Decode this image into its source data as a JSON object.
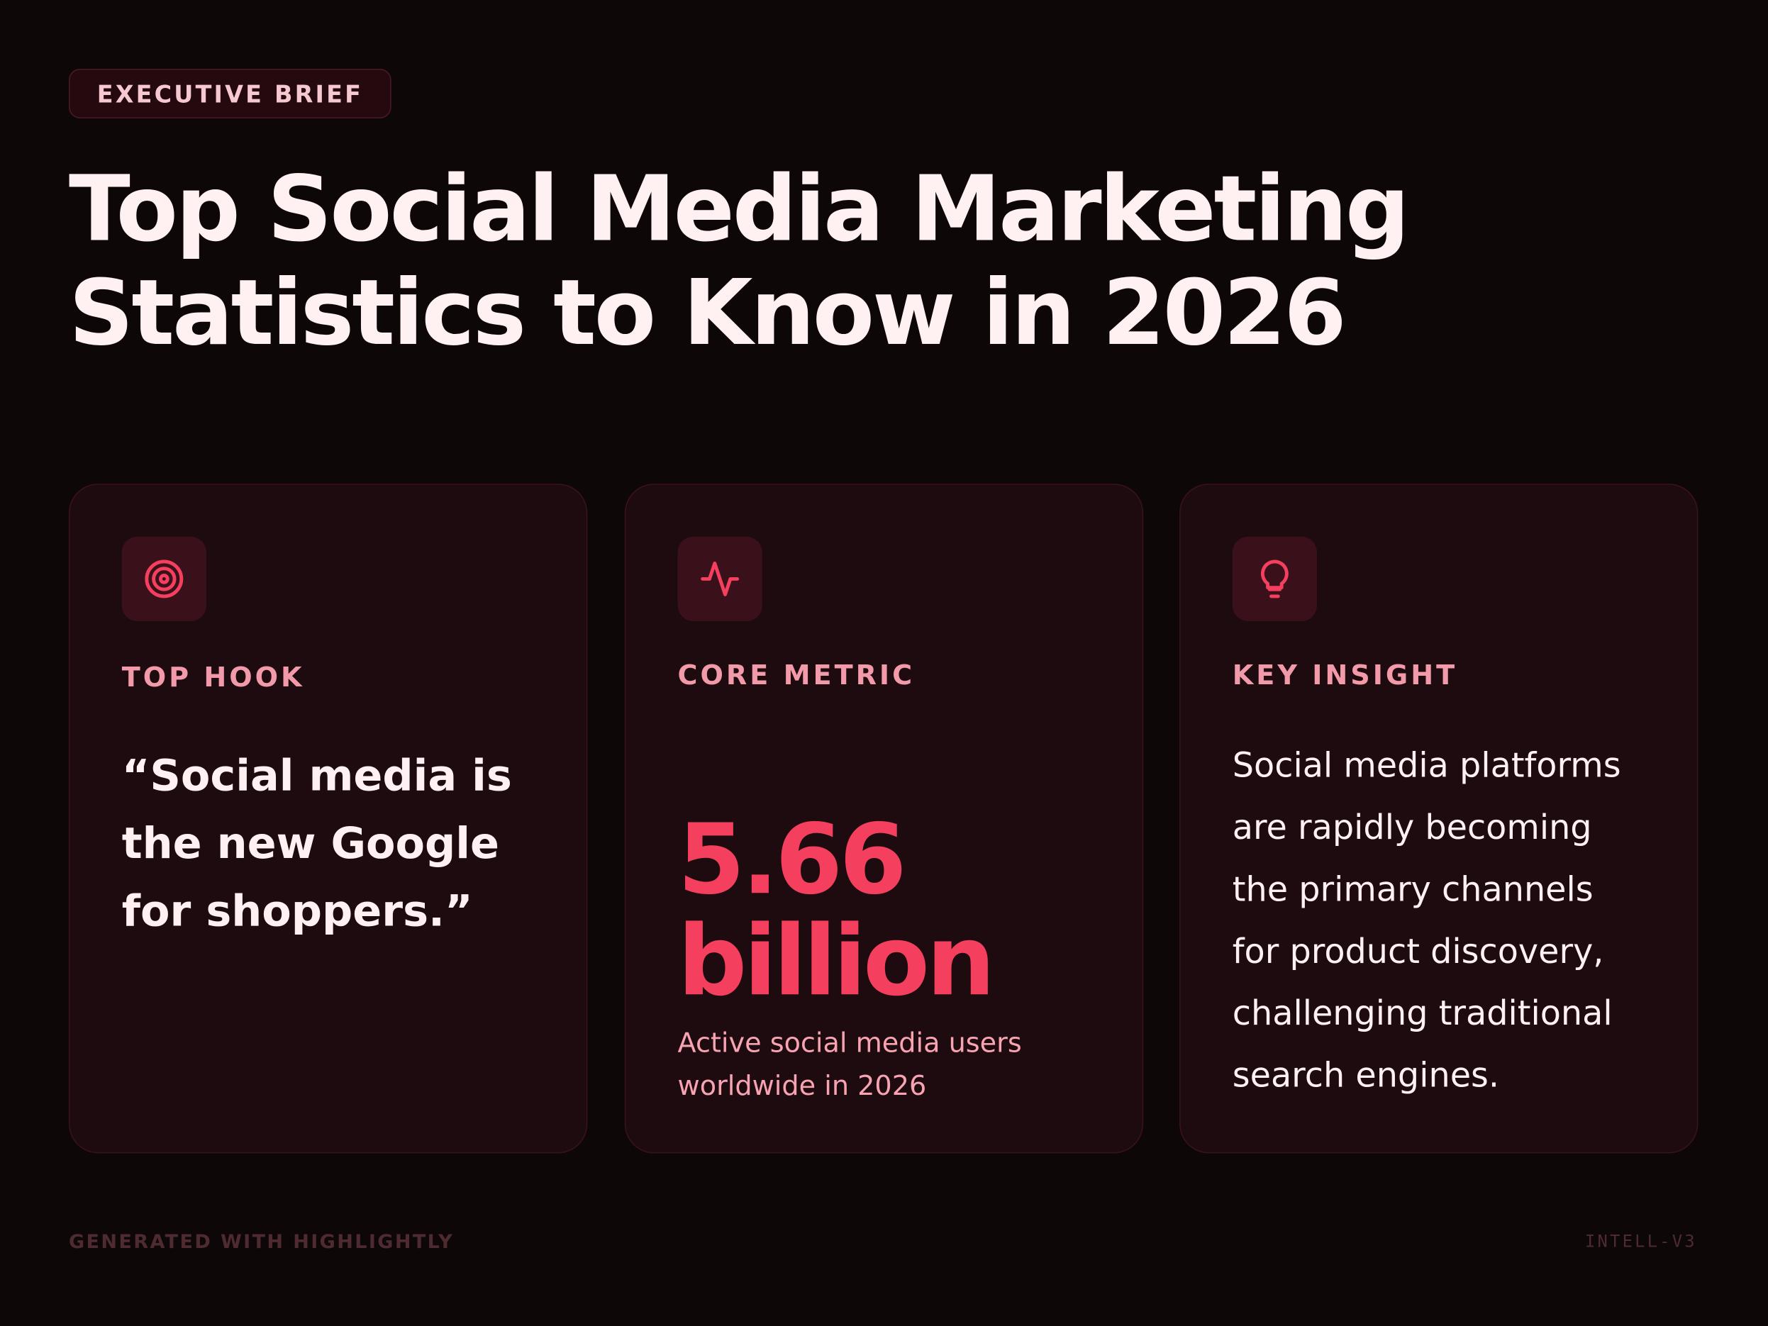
{
  "badge": "EXECUTIVE BRIEF",
  "title": "Top Social Media Marketing Statistics to Know in 2026",
  "cards": [
    {
      "label": "TOP HOOK",
      "quote": "“Social media is the new Google for shoppers.”"
    },
    {
      "label": "CORE METRIC",
      "metric": "5.66 billion",
      "caption": "Active social media users worldwide in 2026"
    },
    {
      "label": "KEY INSIGHT",
      "text": "Social media platforms are rapidly becoming the primary channels for product discovery, challenging traditional search engines."
    }
  ],
  "footer": {
    "left": "GENERATED WITH HIGHLIGHTLY",
    "right": "INTELL-V3"
  }
}
